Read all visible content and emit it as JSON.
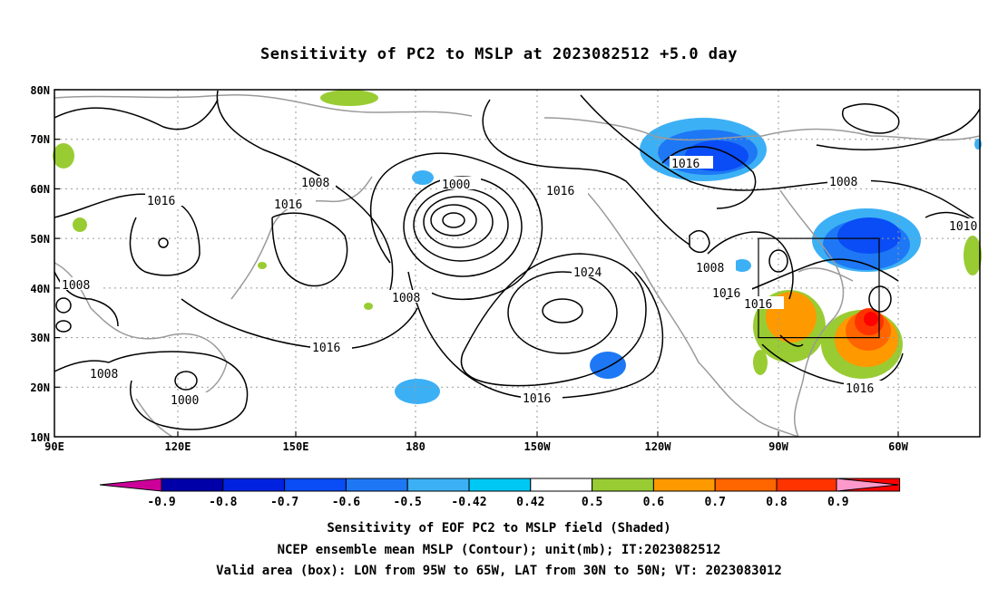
{
  "title": "Sensitivity of PC2 to MSLP at 2023082512 +5.0 day",
  "axes": {
    "lat_labels": [
      "80N",
      "70N",
      "60N",
      "50N",
      "40N",
      "30N",
      "20N",
      "10N"
    ],
    "lon_labels": [
      "90E",
      "120E",
      "150E",
      "180",
      "150W",
      "120W",
      "90W",
      "60W"
    ]
  },
  "contour_labels": {
    "l1008_a": "1008",
    "l1016_a": "1016",
    "l1016_b": "1016",
    "l1000_a": "1000",
    "l1016_c": "1016",
    "l1016_d": "1016",
    "l1008_b": "1008",
    "l1010": "1010",
    "l1008_c": "1008",
    "l1024": "1024",
    "l1008_d": "1008",
    "l1016_e": "1016",
    "l1016_f": "1016",
    "l1008_e": "1008",
    "l1016_g": "1016",
    "l1000_b": "1000",
    "l1016_h": "1016",
    "l1016_i": "1016",
    "l1008_f": "1008"
  },
  "colorbar": {
    "labels": [
      "-0.9",
      "-0.8",
      "-0.7",
      "-0.6",
      "-0.5",
      "-0.42",
      "0.42",
      "0.5",
      "0.6",
      "0.7",
      "0.8",
      "0.9"
    ],
    "colors": [
      "#0000a8",
      "#0022e0",
      "#0a4cf5",
      "#1e78f5",
      "#3cb0f5",
      "#00c8f5",
      "#ffffff",
      "#99cc33",
      "#ff9900",
      "#ff6600",
      "#ff3300",
      "#ff0000"
    ],
    "low_color": "#cc0099",
    "high_color": "#ff99cc"
  },
  "footer": {
    "line1": "Sensitivity of EOF PC2 to MSLP field (Shaded)",
    "line2": "NCEP ensemble mean MSLP (Contour); unit(mb); IT:2023082512",
    "line3": "Valid area (box): LON from 95W to 65W, LAT from 30N to 50N; VT: 2023083012"
  }
}
